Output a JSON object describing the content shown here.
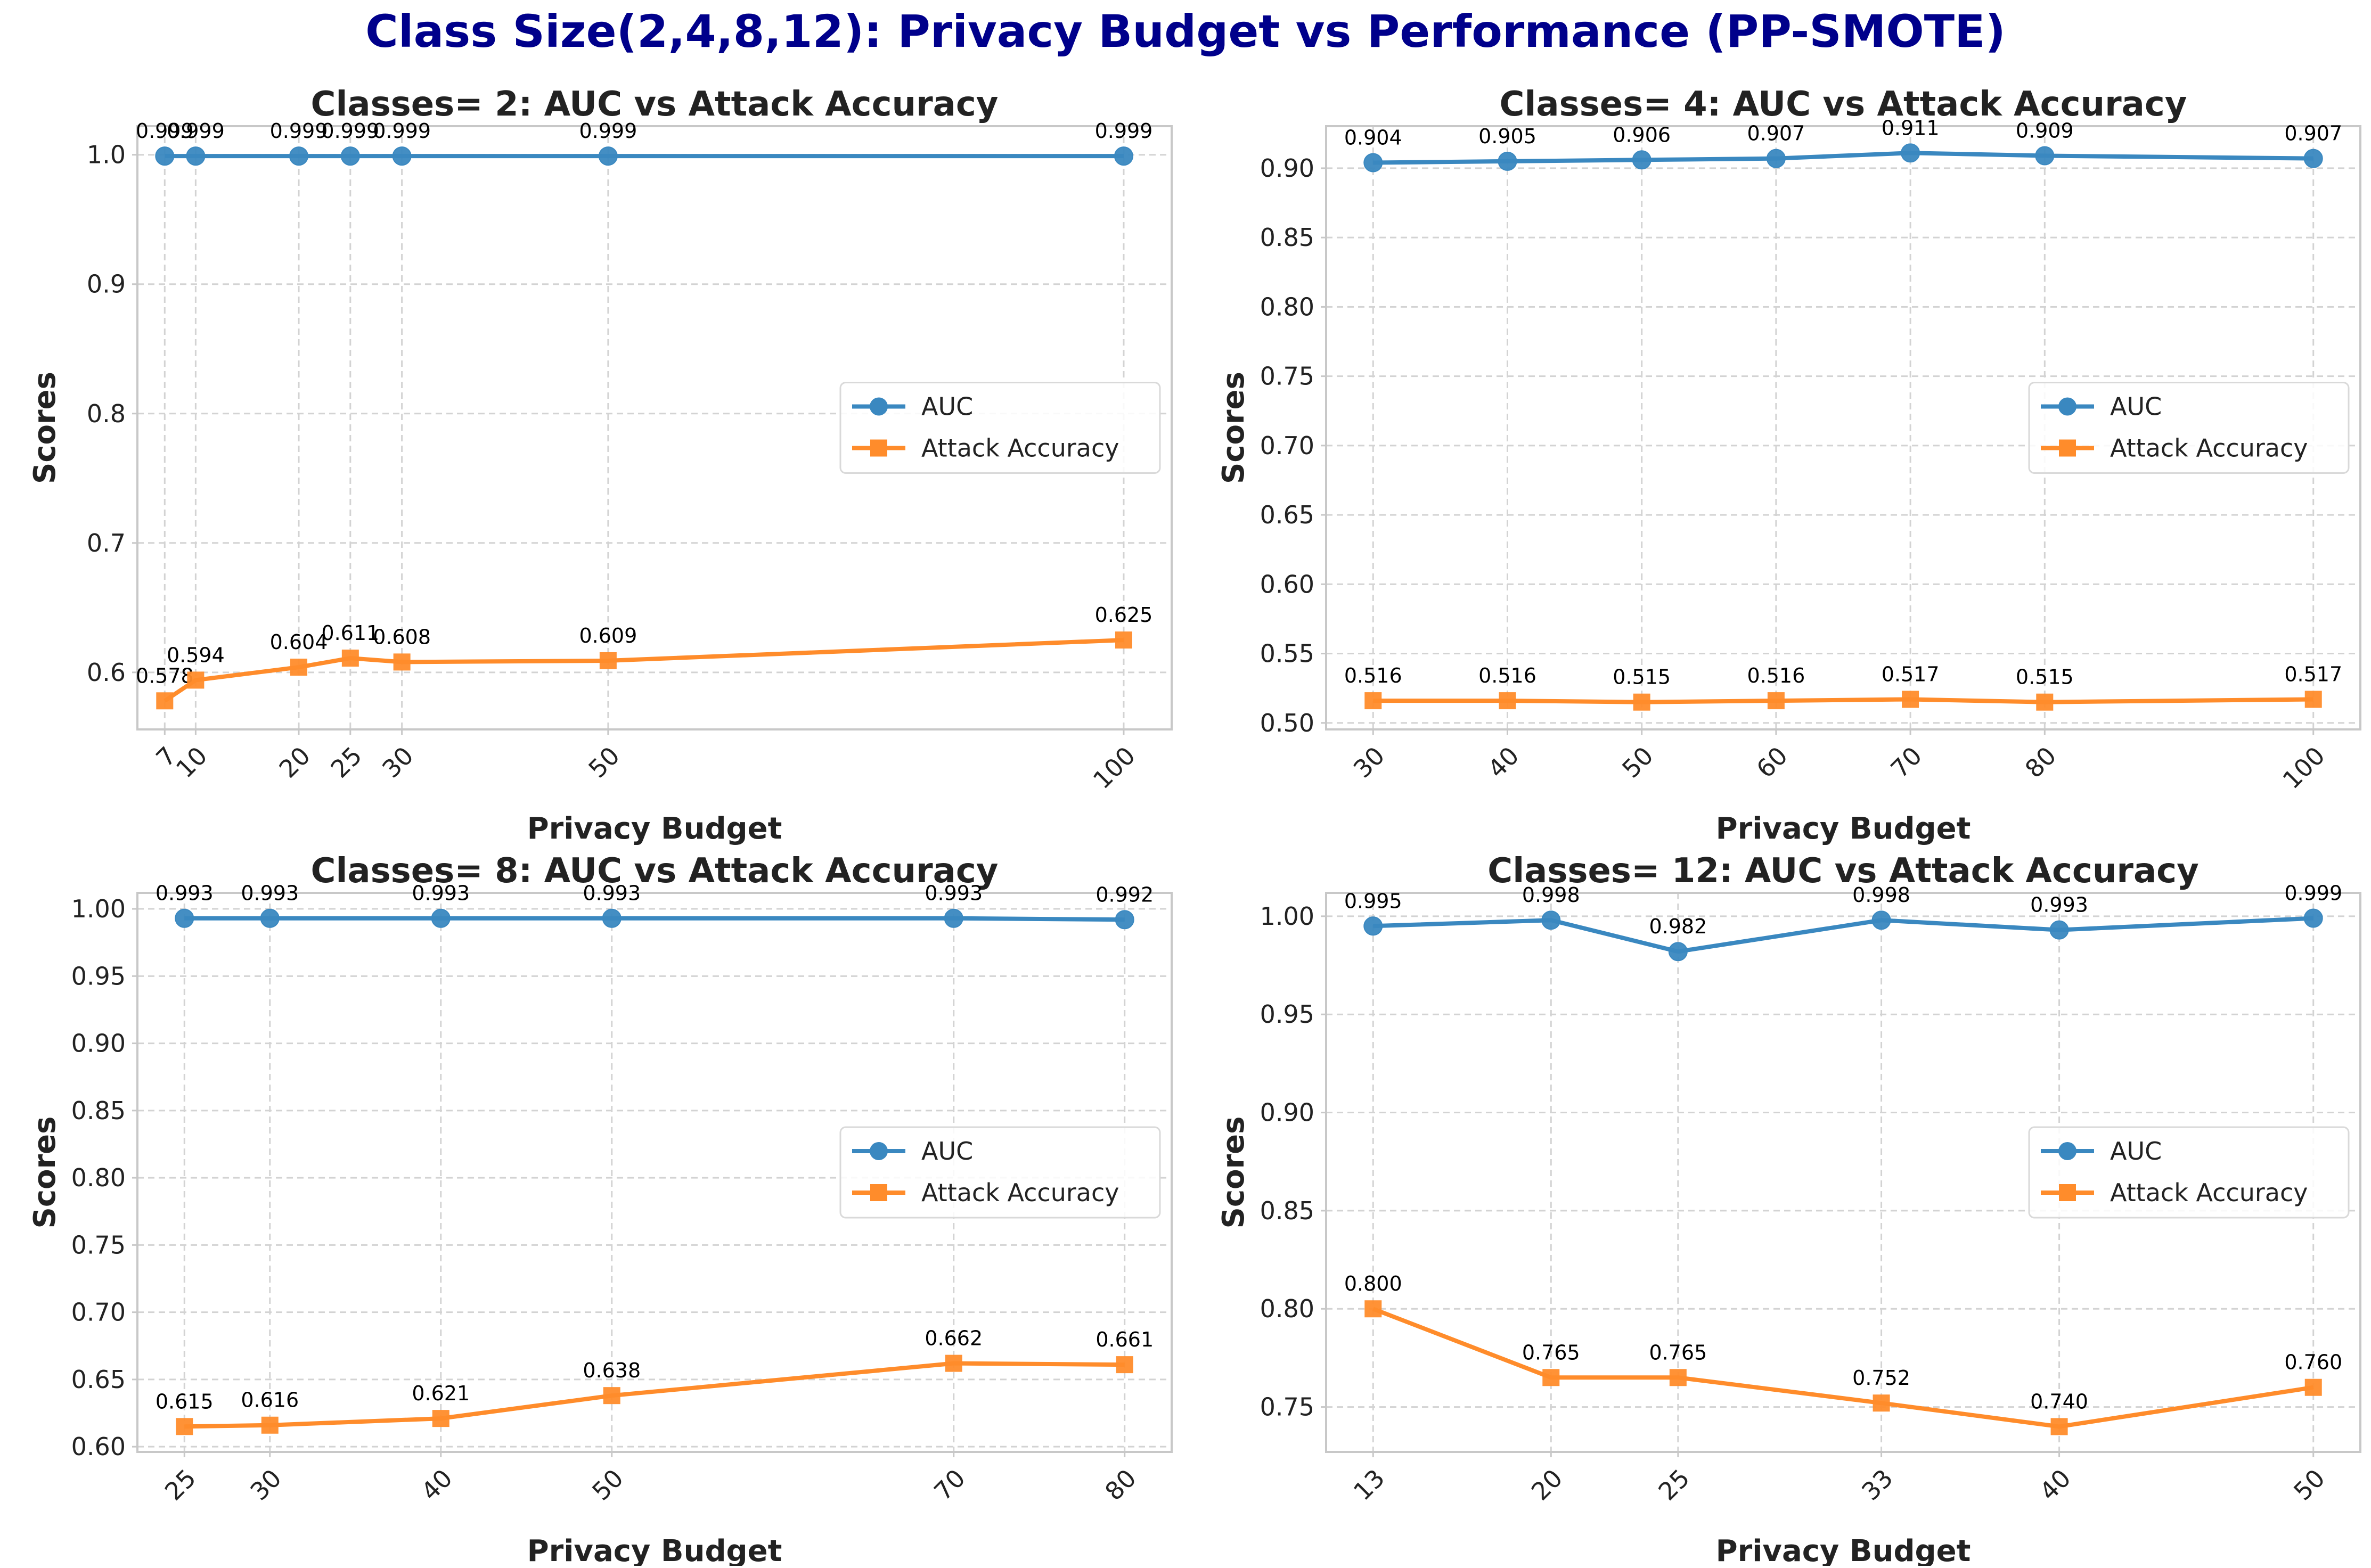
{
  "figure": {
    "title": "Class Size(2,4,8,12): Privacy Budget vs Performance (PP-SMOTE)",
    "title_color": "#00008b"
  },
  "colors": {
    "auc": "#3a88c0",
    "attack": "#ff8c2b",
    "grid": "#d3d3d3",
    "frame": "#c8c8c8",
    "text": "#222222"
  },
  "chart_data": [
    {
      "type": "line",
      "title": "Classes= 2: AUC vs Attack Accuracy",
      "xlabel": "Privacy Budget",
      "ylabel": "Scores",
      "x": [
        7,
        10,
        20,
        25,
        30,
        50,
        100
      ],
      "xlim": [
        4.35,
        104.65
      ],
      "ylim": [
        0.5559,
        1.0221
      ],
      "yticks": [
        0.6,
        0.7,
        0.8,
        0.9,
        1.0
      ],
      "ytick_labels": [
        "0.6",
        "0.7",
        "0.8",
        "0.9",
        "1.0"
      ],
      "grid": true,
      "legend": "center-right",
      "series": [
        {
          "name": "AUC",
          "marker": "circle",
          "values": [
            0.999,
            0.999,
            0.999,
            0.999,
            0.999,
            0.999,
            0.999
          ],
          "labels": [
            "0.999",
            "0.999",
            "0.999",
            "0.999",
            "0.999",
            "0.999",
            "0.999"
          ]
        },
        {
          "name": "Attack Accuracy",
          "marker": "square",
          "values": [
            0.578,
            0.594,
            0.604,
            0.611,
            0.608,
            0.609,
            0.625
          ],
          "labels": [
            "0.578",
            "0.594",
            "0.604",
            "0.611",
            "0.608",
            "0.609",
            "0.625"
          ]
        }
      ]
    },
    {
      "type": "line",
      "title": "Classes= 4: AUC vs Attack Accuracy",
      "xlabel": "Privacy Budget",
      "ylabel": "Scores",
      "x": [
        30,
        40,
        50,
        60,
        70,
        80,
        100
      ],
      "xlim": [
        26.5,
        103.5
      ],
      "ylim": [
        0.4953,
        0.9303
      ],
      "yticks": [
        0.5,
        0.55,
        0.6,
        0.65,
        0.7,
        0.75,
        0.8,
        0.85,
        0.9
      ],
      "ytick_labels": [
        "0.50",
        "0.55",
        "0.60",
        "0.65",
        "0.70",
        "0.75",
        "0.80",
        "0.85",
        "0.90"
      ],
      "grid": true,
      "legend": "center-right",
      "series": [
        {
          "name": "AUC",
          "marker": "circle",
          "values": [
            0.904,
            0.905,
            0.906,
            0.907,
            0.911,
            0.909,
            0.907
          ],
          "labels": [
            "0.904",
            "0.905",
            "0.906",
            "0.907",
            "0.911",
            "0.909",
            "0.907"
          ]
        },
        {
          "name": "Attack Accuracy",
          "marker": "square",
          "values": [
            0.516,
            0.516,
            0.515,
            0.516,
            0.517,
            0.515,
            0.517
          ],
          "labels": [
            "0.516",
            "0.516",
            "0.515",
            "0.516",
            "0.517",
            "0.515",
            "0.517"
          ]
        }
      ]
    },
    {
      "type": "line",
      "title": "Classes= 8: AUC vs Attack Accuracy",
      "xlabel": "Privacy Budget",
      "ylabel": "Scores",
      "x": [
        25,
        30,
        40,
        50,
        70,
        80
      ],
      "xlim": [
        22.25,
        82.75
      ],
      "ylim": [
        0.5961,
        1.0119
      ],
      "yticks": [
        0.6,
        0.65,
        0.7,
        0.75,
        0.8,
        0.85,
        0.9,
        0.95,
        1.0
      ],
      "ytick_labels": [
        "0.60",
        "0.65",
        "0.70",
        "0.75",
        "0.80",
        "0.85",
        "0.90",
        "0.95",
        "1.00"
      ],
      "grid": true,
      "legend": "center-right",
      "series": [
        {
          "name": "AUC",
          "marker": "circle",
          "values": [
            0.993,
            0.993,
            0.993,
            0.993,
            0.993,
            0.992
          ],
          "labels": [
            "0.993",
            "0.993",
            "0.993",
            "0.993",
            "0.993",
            "0.992"
          ]
        },
        {
          "name": "Attack Accuracy",
          "marker": "square",
          "values": [
            0.615,
            0.616,
            0.621,
            0.638,
            0.662,
            0.661
          ],
          "labels": [
            "0.615",
            "0.616",
            "0.621",
            "0.638",
            "0.662",
            "0.661"
          ]
        }
      ]
    },
    {
      "type": "line",
      "title": "Classes= 12: AUC vs Attack Accuracy",
      "xlabel": "Privacy Budget",
      "ylabel": "Scores",
      "x": [
        13,
        20,
        25,
        33,
        40,
        50
      ],
      "xlim": [
        11.15,
        51.85
      ],
      "ylim": [
        0.7271,
        1.0119
      ],
      "yticks": [
        0.75,
        0.8,
        0.85,
        0.9,
        0.95,
        1.0
      ],
      "ytick_labels": [
        "0.75",
        "0.80",
        "0.85",
        "0.90",
        "0.95",
        "1.00"
      ],
      "grid": true,
      "legend": "center-right",
      "series": [
        {
          "name": "AUC",
          "marker": "circle",
          "values": [
            0.995,
            0.998,
            0.982,
            0.998,
            0.993,
            0.999
          ],
          "labels": [
            "0.995",
            "0.998",
            "0.982",
            "0.998",
            "0.993",
            "0.999"
          ]
        },
        {
          "name": "Attack Accuracy",
          "marker": "square",
          "values": [
            0.8,
            0.765,
            0.765,
            0.752,
            0.74,
            0.76
          ],
          "labels": [
            "0.800",
            "0.765",
            "0.765",
            "0.752",
            "0.740",
            "0.760"
          ]
        }
      ]
    }
  ]
}
